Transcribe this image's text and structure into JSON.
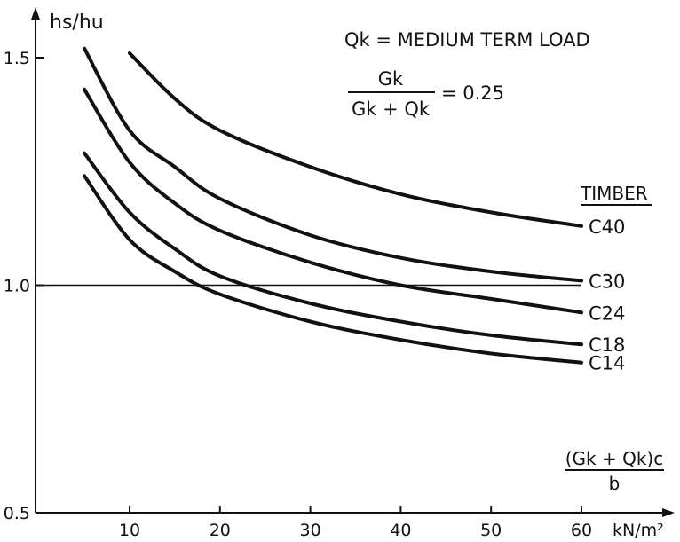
{
  "chart_data": {
    "type": "line",
    "ylabel": "hs/hu",
    "xlabel_num": "(Gk + Qk)c",
    "xlabel_den": "b",
    "xunit": "kN/m²",
    "xlim": [
      2,
      64
    ],
    "ylim": [
      0.5,
      1.6
    ],
    "xticks": [
      10,
      20,
      30,
      40,
      50,
      60
    ],
    "yticks": [
      0.5,
      1.0,
      1.5
    ],
    "ytick_labels": [
      "0.5",
      "1.0",
      "1.5"
    ],
    "grid": false,
    "reference_line_y": 1.0,
    "annotation_load": "Qk = MEDIUM TERM LOAD",
    "annotation_ratio_num": "Gk",
    "annotation_ratio_den": "Gk + Qk",
    "annotation_ratio_value": "= 0.25",
    "legend_title": "TIMBER",
    "series": [
      {
        "name": "C40",
        "x": [
          10,
          15,
          20,
          30,
          40,
          50,
          60
        ],
        "y": [
          1.51,
          1.41,
          1.34,
          1.26,
          1.2,
          1.16,
          1.13
        ]
      },
      {
        "name": "C30",
        "x": [
          5,
          10,
          15,
          20,
          30,
          40,
          50,
          60
        ],
        "y": [
          1.52,
          1.34,
          1.26,
          1.19,
          1.11,
          1.06,
          1.03,
          1.01
        ]
      },
      {
        "name": "C24",
        "x": [
          5,
          10,
          15,
          20,
          30,
          40,
          50,
          60
        ],
        "y": [
          1.43,
          1.27,
          1.18,
          1.12,
          1.05,
          1.0,
          0.97,
          0.94
        ]
      },
      {
        "name": "C18",
        "x": [
          5,
          10,
          15,
          20,
          30,
          40,
          50,
          60
        ],
        "y": [
          1.29,
          1.16,
          1.08,
          1.02,
          0.96,
          0.92,
          0.89,
          0.87
        ]
      },
      {
        "name": "C14",
        "x": [
          5,
          10,
          15,
          20,
          30,
          40,
          50,
          60
        ],
        "y": [
          1.24,
          1.1,
          1.03,
          0.98,
          0.92,
          0.88,
          0.85,
          0.83
        ]
      }
    ]
  }
}
